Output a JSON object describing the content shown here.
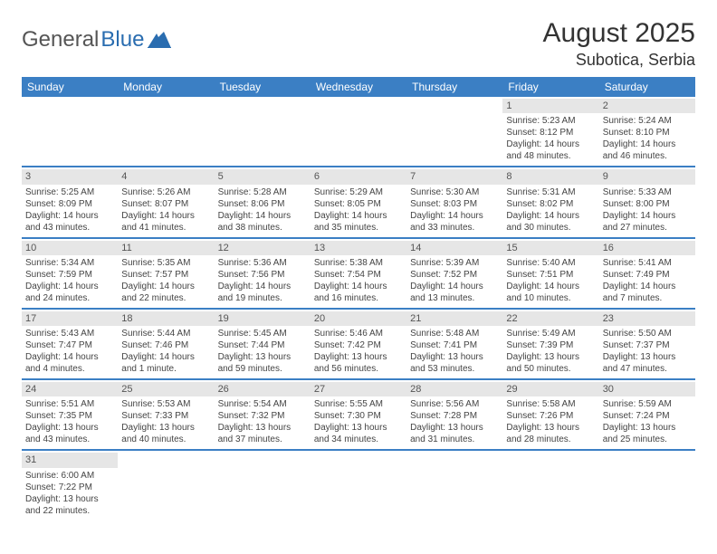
{
  "logo": {
    "part1": "General",
    "part2": "Blue"
  },
  "title": "August 2025",
  "location": "Subotica, Serbia",
  "colors": {
    "header_bg": "#3b7fc4",
    "header_text": "#ffffff",
    "daynum_bg": "#e6e6e6",
    "row_divider": "#3b7fc4",
    "body_text": "#444444",
    "logo_gray": "#555555",
    "logo_blue": "#2a6db0"
  },
  "weekdays": [
    "Sunday",
    "Monday",
    "Tuesday",
    "Wednesday",
    "Thursday",
    "Friday",
    "Saturday"
  ],
  "weeks": [
    [
      {
        "day": "",
        "sunrise": "",
        "sunset": "",
        "daylight": ""
      },
      {
        "day": "",
        "sunrise": "",
        "sunset": "",
        "daylight": ""
      },
      {
        "day": "",
        "sunrise": "",
        "sunset": "",
        "daylight": ""
      },
      {
        "day": "",
        "sunrise": "",
        "sunset": "",
        "daylight": ""
      },
      {
        "day": "",
        "sunrise": "",
        "sunset": "",
        "daylight": ""
      },
      {
        "day": "1",
        "sunrise": "Sunrise: 5:23 AM",
        "sunset": "Sunset: 8:12 PM",
        "daylight": "Daylight: 14 hours and 48 minutes."
      },
      {
        "day": "2",
        "sunrise": "Sunrise: 5:24 AM",
        "sunset": "Sunset: 8:10 PM",
        "daylight": "Daylight: 14 hours and 46 minutes."
      }
    ],
    [
      {
        "day": "3",
        "sunrise": "Sunrise: 5:25 AM",
        "sunset": "Sunset: 8:09 PM",
        "daylight": "Daylight: 14 hours and 43 minutes."
      },
      {
        "day": "4",
        "sunrise": "Sunrise: 5:26 AM",
        "sunset": "Sunset: 8:07 PM",
        "daylight": "Daylight: 14 hours and 41 minutes."
      },
      {
        "day": "5",
        "sunrise": "Sunrise: 5:28 AM",
        "sunset": "Sunset: 8:06 PM",
        "daylight": "Daylight: 14 hours and 38 minutes."
      },
      {
        "day": "6",
        "sunrise": "Sunrise: 5:29 AM",
        "sunset": "Sunset: 8:05 PM",
        "daylight": "Daylight: 14 hours and 35 minutes."
      },
      {
        "day": "7",
        "sunrise": "Sunrise: 5:30 AM",
        "sunset": "Sunset: 8:03 PM",
        "daylight": "Daylight: 14 hours and 33 minutes."
      },
      {
        "day": "8",
        "sunrise": "Sunrise: 5:31 AM",
        "sunset": "Sunset: 8:02 PM",
        "daylight": "Daylight: 14 hours and 30 minutes."
      },
      {
        "day": "9",
        "sunrise": "Sunrise: 5:33 AM",
        "sunset": "Sunset: 8:00 PM",
        "daylight": "Daylight: 14 hours and 27 minutes."
      }
    ],
    [
      {
        "day": "10",
        "sunrise": "Sunrise: 5:34 AM",
        "sunset": "Sunset: 7:59 PM",
        "daylight": "Daylight: 14 hours and 24 minutes."
      },
      {
        "day": "11",
        "sunrise": "Sunrise: 5:35 AM",
        "sunset": "Sunset: 7:57 PM",
        "daylight": "Daylight: 14 hours and 22 minutes."
      },
      {
        "day": "12",
        "sunrise": "Sunrise: 5:36 AM",
        "sunset": "Sunset: 7:56 PM",
        "daylight": "Daylight: 14 hours and 19 minutes."
      },
      {
        "day": "13",
        "sunrise": "Sunrise: 5:38 AM",
        "sunset": "Sunset: 7:54 PM",
        "daylight": "Daylight: 14 hours and 16 minutes."
      },
      {
        "day": "14",
        "sunrise": "Sunrise: 5:39 AM",
        "sunset": "Sunset: 7:52 PM",
        "daylight": "Daylight: 14 hours and 13 minutes."
      },
      {
        "day": "15",
        "sunrise": "Sunrise: 5:40 AM",
        "sunset": "Sunset: 7:51 PM",
        "daylight": "Daylight: 14 hours and 10 minutes."
      },
      {
        "day": "16",
        "sunrise": "Sunrise: 5:41 AM",
        "sunset": "Sunset: 7:49 PM",
        "daylight": "Daylight: 14 hours and 7 minutes."
      }
    ],
    [
      {
        "day": "17",
        "sunrise": "Sunrise: 5:43 AM",
        "sunset": "Sunset: 7:47 PM",
        "daylight": "Daylight: 14 hours and 4 minutes."
      },
      {
        "day": "18",
        "sunrise": "Sunrise: 5:44 AM",
        "sunset": "Sunset: 7:46 PM",
        "daylight": "Daylight: 14 hours and 1 minute."
      },
      {
        "day": "19",
        "sunrise": "Sunrise: 5:45 AM",
        "sunset": "Sunset: 7:44 PM",
        "daylight": "Daylight: 13 hours and 59 minutes."
      },
      {
        "day": "20",
        "sunrise": "Sunrise: 5:46 AM",
        "sunset": "Sunset: 7:42 PM",
        "daylight": "Daylight: 13 hours and 56 minutes."
      },
      {
        "day": "21",
        "sunrise": "Sunrise: 5:48 AM",
        "sunset": "Sunset: 7:41 PM",
        "daylight": "Daylight: 13 hours and 53 minutes."
      },
      {
        "day": "22",
        "sunrise": "Sunrise: 5:49 AM",
        "sunset": "Sunset: 7:39 PM",
        "daylight": "Daylight: 13 hours and 50 minutes."
      },
      {
        "day": "23",
        "sunrise": "Sunrise: 5:50 AM",
        "sunset": "Sunset: 7:37 PM",
        "daylight": "Daylight: 13 hours and 47 minutes."
      }
    ],
    [
      {
        "day": "24",
        "sunrise": "Sunrise: 5:51 AM",
        "sunset": "Sunset: 7:35 PM",
        "daylight": "Daylight: 13 hours and 43 minutes."
      },
      {
        "day": "25",
        "sunrise": "Sunrise: 5:53 AM",
        "sunset": "Sunset: 7:33 PM",
        "daylight": "Daylight: 13 hours and 40 minutes."
      },
      {
        "day": "26",
        "sunrise": "Sunrise: 5:54 AM",
        "sunset": "Sunset: 7:32 PM",
        "daylight": "Daylight: 13 hours and 37 minutes."
      },
      {
        "day": "27",
        "sunrise": "Sunrise: 5:55 AM",
        "sunset": "Sunset: 7:30 PM",
        "daylight": "Daylight: 13 hours and 34 minutes."
      },
      {
        "day": "28",
        "sunrise": "Sunrise: 5:56 AM",
        "sunset": "Sunset: 7:28 PM",
        "daylight": "Daylight: 13 hours and 31 minutes."
      },
      {
        "day": "29",
        "sunrise": "Sunrise: 5:58 AM",
        "sunset": "Sunset: 7:26 PM",
        "daylight": "Daylight: 13 hours and 28 minutes."
      },
      {
        "day": "30",
        "sunrise": "Sunrise: 5:59 AM",
        "sunset": "Sunset: 7:24 PM",
        "daylight": "Daylight: 13 hours and 25 minutes."
      }
    ],
    [
      {
        "day": "31",
        "sunrise": "Sunrise: 6:00 AM",
        "sunset": "Sunset: 7:22 PM",
        "daylight": "Daylight: 13 hours and 22 minutes."
      },
      {
        "day": "",
        "sunrise": "",
        "sunset": "",
        "daylight": ""
      },
      {
        "day": "",
        "sunrise": "",
        "sunset": "",
        "daylight": ""
      },
      {
        "day": "",
        "sunrise": "",
        "sunset": "",
        "daylight": ""
      },
      {
        "day": "",
        "sunrise": "",
        "sunset": "",
        "daylight": ""
      },
      {
        "day": "",
        "sunrise": "",
        "sunset": "",
        "daylight": ""
      },
      {
        "day": "",
        "sunrise": "",
        "sunset": "",
        "daylight": ""
      }
    ]
  ]
}
